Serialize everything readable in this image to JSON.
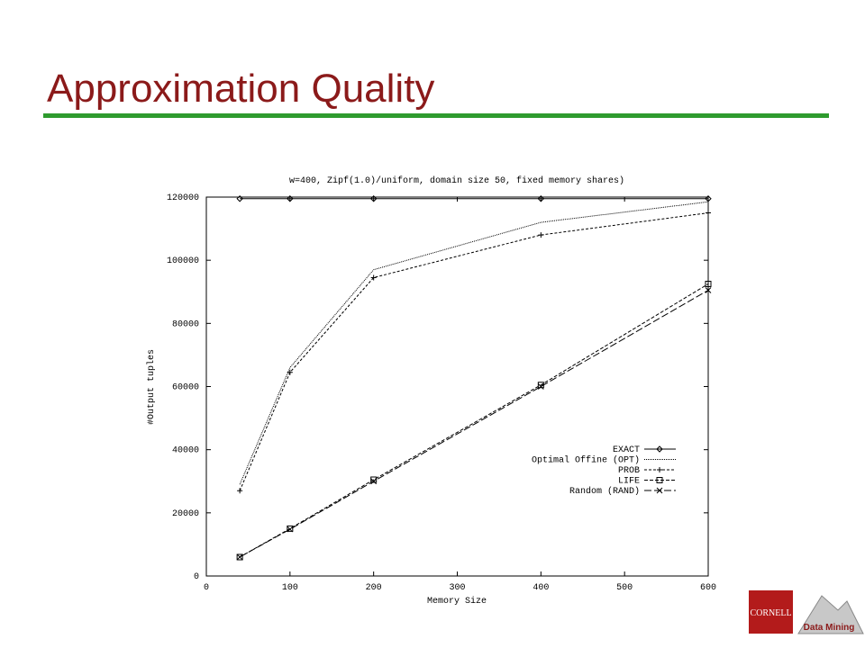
{
  "slide": {
    "title": "Approximation Quality",
    "logo_left": "CORNELL",
    "logo_right": "Data Mining"
  },
  "chart_data": {
    "type": "line",
    "title": "w=400, Zipf(1.0)/uniform, domain size 50, fixed memory shares)",
    "x_label": "Memory Size",
    "y_label": "#Output tuples",
    "x": [
      40,
      100,
      200,
      400,
      600
    ],
    "xlim": [
      0,
      600
    ],
    "xticks": [
      0,
      100,
      200,
      300,
      400,
      500,
      600
    ],
    "ylim": [
      0,
      120000
    ],
    "yticks": [
      0,
      20000,
      40000,
      60000,
      80000,
      100000,
      120000
    ],
    "legend": "lower right",
    "series": [
      {
        "name": "EXACT",
        "color": "#000000",
        "dash": "none",
        "marker": "diamond",
        "values": [
          119500,
          119500,
          119500,
          119500,
          119500
        ]
      },
      {
        "name": "Optimal Offine (OPT)",
        "color": "#000000",
        "dash": "1 1",
        "values": [
          29000,
          66000,
          97000,
          112000,
          118500
        ]
      },
      {
        "name": "PROB",
        "color": "#000000",
        "dash": "3 2",
        "marker": "plus",
        "values": [
          27000,
          64500,
          94500,
          108000,
          115000
        ]
      },
      {
        "name": "LIFE",
        "color": "#000000",
        "dash": "4 2",
        "marker": "square",
        "values": [
          6000,
          15000,
          30500,
          60500,
          92500
        ]
      },
      {
        "name": "Random (RAND)",
        "color": "#000000",
        "dash": "8 3",
        "marker": "x",
        "values": [
          6000,
          14800,
          30000,
          60000,
          90500
        ]
      }
    ]
  }
}
